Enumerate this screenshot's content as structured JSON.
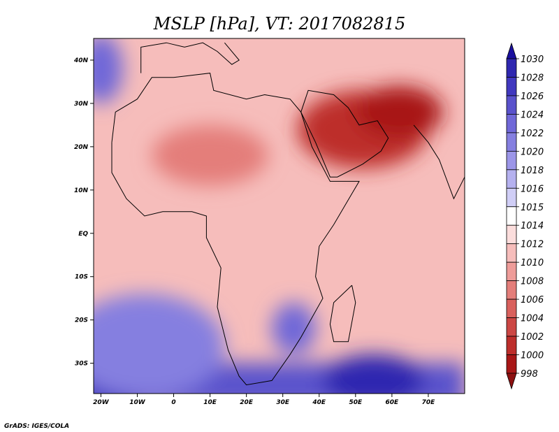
{
  "title": "MSLP [hPa], VT: 2017082815",
  "credit": "GrADS: IGES/COLA",
  "map": {
    "lat_range": [
      -37,
      45
    ],
    "lon_range": [
      -22,
      80
    ],
    "lat_ticks": [
      {
        "lat": 40,
        "label": "40N"
      },
      {
        "lat": 30,
        "label": "30N"
      },
      {
        "lat": 20,
        "label": "20N"
      },
      {
        "lat": 10,
        "label": "10N"
      },
      {
        "lat": 0,
        "label": "EQ"
      },
      {
        "lat": -10,
        "label": "10S"
      },
      {
        "lat": -20,
        "label": "20S"
      },
      {
        "lat": -30,
        "label": "30S"
      }
    ],
    "lon_ticks": [
      {
        "lon": -20,
        "label": "20W"
      },
      {
        "lon": -10,
        "label": "10W"
      },
      {
        "lon": 0,
        "label": "0"
      },
      {
        "lon": 10,
        "label": "10E"
      },
      {
        "lon": 20,
        "label": "20E"
      },
      {
        "lon": 30,
        "label": "30E"
      },
      {
        "lon": 40,
        "label": "40E"
      },
      {
        "lon": 50,
        "label": "50E"
      },
      {
        "lon": 60,
        "label": "60E"
      },
      {
        "lon": 70,
        "label": "70E"
      }
    ]
  },
  "colorbar": {
    "labels": [
      "1030",
      "1028",
      "1026",
      "1024",
      "1022",
      "1020",
      "1018",
      "1016",
      "1015",
      "1014",
      "1012",
      "1010",
      "1008",
      "1006",
      "1004",
      "1002",
      "1000",
      "998"
    ],
    "colors": [
      "#1a0f9e",
      "#2f27b0",
      "#4138bf",
      "#5a52cc",
      "#7068d8",
      "#857fe0",
      "#9c96e8",
      "#b5b1ef",
      "#d0cef6",
      "#ffffff",
      "#fbdddc",
      "#f6bdbb",
      "#ee9c99",
      "#e47e7a",
      "#d9615d",
      "#cc4744",
      "#bd2e2b",
      "#a81717",
      "#8c1010"
    ]
  },
  "field": {
    "background": "#f6bdbb",
    "regions": [
      {
        "name": "south-atlantic-high",
        "color": "#4138bf",
        "lat": -33,
        "lon": -18,
        "rlat": 9,
        "rlon": 14
      },
      {
        "name": "south-atlantic-high-ring",
        "color": "#857fe0",
        "lat": -26,
        "lon": -8,
        "rlat": 12,
        "rlon": 22
      },
      {
        "name": "indian-ocean-high",
        "color": "#2f27b0",
        "lat": -34,
        "lon": 55,
        "rlat": 6,
        "rlon": 14
      },
      {
        "name": "mozambique-high",
        "color": "#7068d8",
        "lat": -22,
        "lon": 33,
        "rlat": 6,
        "rlon": 6
      },
      {
        "name": "north-atlantic-high",
        "color": "#7068d8",
        "lat": 38,
        "lon": -20,
        "rlat": 8,
        "rlon": 6
      },
      {
        "name": "sahara-low",
        "color": "#e47e7a",
        "lat": 18,
        "lon": 10,
        "rlat": 7,
        "rlon": 16
      },
      {
        "name": "arabian-low",
        "color": "#bd2e2b",
        "lat": 24,
        "lon": 52,
        "rlat": 9,
        "rlon": 18
      },
      {
        "name": "persian-low",
        "color": "#a81717",
        "lat": 28,
        "lon": 62,
        "rlat": 6,
        "rlon": 12
      }
    ]
  }
}
